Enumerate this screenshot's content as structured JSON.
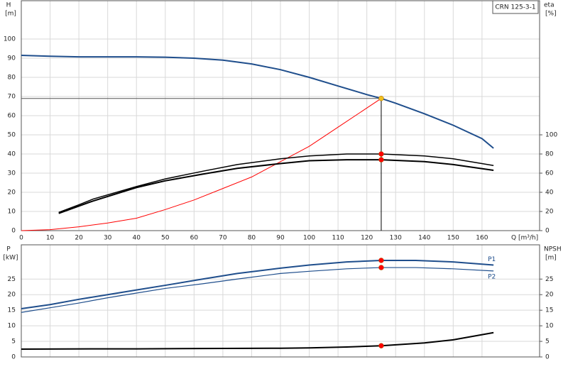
{
  "chart_data": [
    {
      "type": "line",
      "title": "CRN 125-3-1",
      "x_label": "Q [m³/h]",
      "y_label": "H",
      "y_unit": "[m]",
      "y2_label": "eta",
      "y2_unit": "[%]",
      "xlim": [
        0,
        180
      ],
      "xticks": [
        0,
        10,
        20,
        30,
        40,
        50,
        60,
        70,
        80,
        90,
        100,
        110,
        120,
        130,
        140,
        150,
        160
      ],
      "ylim": [
        0,
        120
      ],
      "yticks": [
        0,
        10,
        20,
        30,
        40,
        50,
        60,
        70,
        80,
        90,
        100
      ],
      "y2lim": [
        0,
        240
      ],
      "y2ticks": [
        0,
        20,
        40,
        60,
        80,
        100
      ],
      "grid": true,
      "series": [
        {
          "color": "#1f4e8c",
          "width": 2,
          "x": [
            0,
            10,
            20,
            30,
            40,
            50,
            60,
            70,
            80,
            90,
            100,
            110,
            120,
            125,
            130,
            140,
            150,
            160,
            164
          ],
          "values": [
            91.5,
            91,
            90.7,
            90.7,
            90.7,
            90.5,
            90,
            89,
            87,
            84,
            80,
            75.5,
            71,
            69,
            66.5,
            61,
            55,
            48,
            43
          ]
        },
        {
          "color": "#ff0000",
          "width": 1,
          "x": [
            0,
            10,
            20,
            30,
            40,
            50,
            60,
            70,
            80,
            90,
            100,
            110,
            120,
            125
          ],
          "values": [
            0,
            0.5,
            2,
            4,
            6.5,
            11,
            16,
            22,
            28,
            36,
            44,
            54,
            64,
            69
          ]
        },
        {
          "color": "#000000",
          "width": 1.5,
          "axis": "y2",
          "x": [
            13,
            20,
            25,
            40,
            50,
            63,
            75,
            90,
            100,
            113,
            125,
            140,
            150,
            164
          ],
          "values": [
            19,
            27,
            33,
            46,
            54,
            62,
            69,
            75,
            78,
            80,
            80,
            78,
            75,
            68
          ]
        },
        {
          "color": "#000000",
          "width": 2,
          "axis": "y2",
          "x": [
            13,
            25,
            40,
            50,
            63,
            75,
            90,
            100,
            113,
            125,
            140,
            150,
            164
          ],
          "values": [
            18,
            31,
            45,
            52,
            59,
            65,
            70,
            73,
            74,
            74,
            72,
            69,
            63
          ]
        }
      ],
      "points": [
        {
          "x": 125,
          "y": 69,
          "color": "#f0c020"
        },
        {
          "x": 125,
          "y": 80,
          "axis": "y2",
          "color": "#ff0000"
        },
        {
          "x": 125,
          "y": 74,
          "axis": "y2",
          "color": "#ff0000"
        }
      ],
      "duty_lines": true
    },
    {
      "type": "line",
      "y_label": "P",
      "y_unit": "[kW]",
      "y2_label": "NPSH",
      "y2_unit": "[m]",
      "xlim": [
        0,
        180
      ],
      "xticks": [
        0,
        10,
        20,
        30,
        40,
        50,
        60,
        70,
        80,
        90,
        100,
        110,
        120,
        130,
        140,
        150,
        160
      ],
      "ylim": [
        0,
        36
      ],
      "yticks": [
        0,
        5,
        10,
        15,
        20,
        25
      ],
      "y2lim": [
        0,
        36
      ],
      "y2ticks": [
        0,
        5,
        10,
        15,
        20,
        25
      ],
      "grid": true,
      "series": [
        {
          "name": "P1",
          "color": "#1f4e8c",
          "width": 2,
          "x": [
            0,
            10,
            20,
            30,
            40,
            50,
            63,
            75,
            90,
            100,
            113,
            125,
            137,
            150,
            164
          ],
          "values": [
            15.5,
            16.8,
            18.5,
            20,
            21.5,
            23,
            25,
            26.8,
            28.5,
            29.5,
            30.5,
            31,
            31,
            30.5,
            29.5
          ]
        },
        {
          "name": "P2",
          "color": "#1f4e8c",
          "width": 1.2,
          "x": [
            0,
            10,
            20,
            30,
            40,
            50,
            63,
            75,
            90,
            100,
            113,
            125,
            137,
            150,
            164
          ],
          "values": [
            14.3,
            15.8,
            17.3,
            19,
            20.5,
            22,
            23.5,
            25,
            26.8,
            27.5,
            28.3,
            28.7,
            28.7,
            28.3,
            27.6
          ]
        },
        {
          "color": "#000000",
          "width": 2,
          "axis": "y2",
          "x": [
            0,
            25,
            40,
            63,
            90,
            100,
            113,
            125,
            140,
            150,
            164
          ],
          "values": [
            2.5,
            2.6,
            2.6,
            2.7,
            2.8,
            2.9,
            3.2,
            3.6,
            4.5,
            5.5,
            7.8
          ]
        }
      ],
      "points": [
        {
          "x": 125,
          "y": 31,
          "color": "#ff0000"
        },
        {
          "x": 125,
          "y": 28.7,
          "color": "#ff0000"
        },
        {
          "x": 125,
          "y": 3.6,
          "axis": "y2",
          "color": "#ff0000"
        }
      ]
    }
  ]
}
